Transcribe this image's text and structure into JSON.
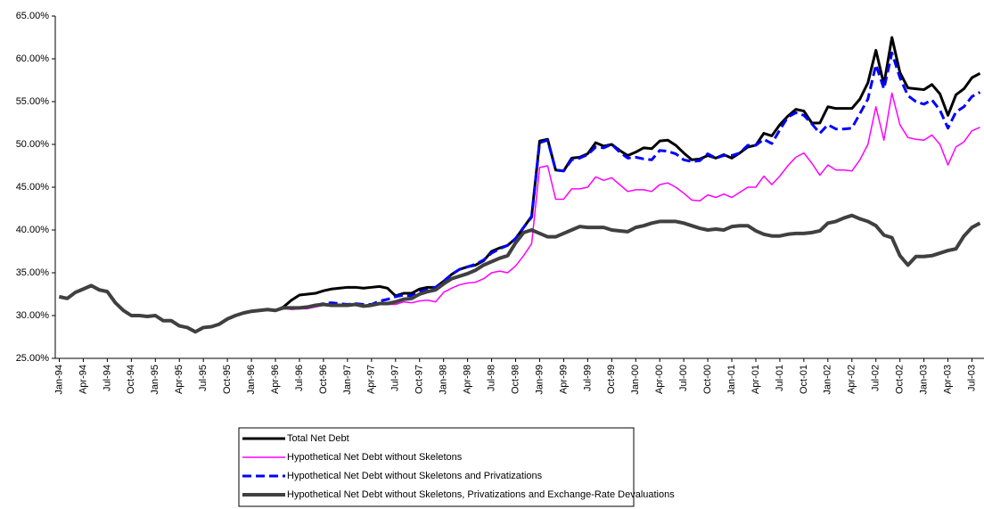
{
  "chart_data": {
    "type": "line",
    "categories": [
      "Jan-94",
      null,
      null,
      "Apr-94",
      null,
      null,
      "Jul-94",
      null,
      null,
      "Oct-94",
      null,
      null,
      "Jan-95",
      null,
      null,
      "Apr-95",
      null,
      null,
      "Jul-95",
      null,
      null,
      "Oct-95",
      null,
      null,
      "Jan-96",
      null,
      null,
      "Apr-96",
      null,
      null,
      "Jul-96",
      null,
      null,
      "Oct-96",
      null,
      null,
      "Jan-97",
      null,
      null,
      "Apr-97",
      null,
      null,
      "Jul-97",
      null,
      null,
      "Oct-97",
      null,
      null,
      "Jan-98",
      null,
      null,
      "Apr-98",
      null,
      null,
      "Jul-98",
      null,
      null,
      "Oct-98",
      null,
      null,
      "Jan-99",
      null,
      null,
      "Apr-99",
      null,
      null,
      "Jul-99",
      null,
      null,
      "Oct-99",
      null,
      null,
      "Jan-00",
      null,
      null,
      "Apr-00",
      null,
      null,
      "Jul-00",
      null,
      null,
      "Oct-00",
      null,
      null,
      "Jan-01",
      null,
      null,
      "Apr-01",
      null,
      null,
      "Jul-01",
      null,
      null,
      "Oct-01",
      null,
      null,
      "Jan-02",
      null,
      null,
      "Apr-02",
      null,
      null,
      "Jul-02",
      null,
      null,
      "Oct-02",
      null,
      null,
      "Jan-03",
      null,
      null,
      "Apr-03",
      null,
      null,
      "Jul-03",
      null
    ],
    "series": [
      {
        "name": "Total Net Debt",
        "color": "#000000",
        "style": "solid",
        "values": [
          32.2,
          32.0,
          32.7,
          33.1,
          33.5,
          33.0,
          32.8,
          31.5,
          30.6,
          30.0,
          30.0,
          29.9,
          30.0,
          29.4,
          29.4,
          28.8,
          28.6,
          28.1,
          28.6,
          28.7,
          29.0,
          29.6,
          30.0,
          30.3,
          30.5,
          30.6,
          30.7,
          30.6,
          31.0,
          31.8,
          32.4,
          32.5,
          32.6,
          32.9,
          33.1,
          33.2,
          33.3,
          33.3,
          33.2,
          33.3,
          33.4,
          33.2,
          32.3,
          32.6,
          32.6,
          33.1,
          33.3,
          33.3,
          34.0,
          34.8,
          35.4,
          35.7,
          35.9,
          36.4,
          37.5,
          37.9,
          38.2,
          39.0,
          40.3,
          41.6,
          50.4,
          50.6,
          47.0,
          46.9,
          48.4,
          48.5,
          48.9,
          50.2,
          49.8,
          50.0,
          49.3,
          48.7,
          49.1,
          49.6,
          49.5,
          50.4,
          50.5,
          49.9,
          49.0,
          48.2,
          48.3,
          48.7,
          48.4,
          48.8,
          48.4,
          49.0,
          49.7,
          49.9,
          51.3,
          51.0,
          52.3,
          53.3,
          54.1,
          53.9,
          52.5,
          52.5,
          54.4,
          54.2,
          54.2,
          54.2,
          55.3,
          57.2,
          61.0,
          57.0,
          62.5,
          58.4,
          56.6,
          56.5,
          56.4,
          57.0,
          55.9,
          53.4,
          55.8,
          56.5,
          57.8,
          58.3
        ]
      },
      {
        "name": "Hypothetical Net Debt without Skeletons",
        "color": "#ff00ff",
        "style": "solid",
        "values": [
          32.2,
          32.0,
          32.7,
          33.1,
          33.5,
          33.0,
          32.8,
          31.5,
          30.6,
          30.0,
          30.0,
          29.9,
          30.0,
          29.4,
          29.4,
          28.8,
          28.6,
          28.1,
          28.6,
          28.7,
          29.0,
          29.6,
          30.0,
          30.3,
          30.5,
          30.6,
          30.7,
          30.6,
          30.9,
          30.7,
          30.8,
          30.8,
          31.0,
          31.2,
          31.3,
          31.3,
          31.3,
          31.3,
          31.2,
          31.3,
          31.4,
          31.3,
          31.3,
          31.6,
          31.5,
          31.7,
          31.8,
          31.6,
          32.7,
          33.2,
          33.6,
          33.8,
          33.9,
          34.3,
          35.0,
          35.2,
          35.0,
          35.8,
          37.0,
          38.4,
          47.3,
          47.5,
          43.6,
          43.6,
          44.8,
          44.8,
          45.0,
          46.2,
          45.8,
          46.1,
          45.3,
          44.5,
          44.7,
          44.7,
          44.5,
          45.3,
          45.5,
          45.0,
          44.3,
          43.5,
          43.4,
          44.1,
          43.8,
          44.2,
          43.8,
          44.4,
          45.0,
          45.0,
          46.3,
          45.3,
          46.3,
          47.5,
          48.5,
          49.0,
          47.8,
          46.4,
          47.6,
          47.0,
          47.0,
          46.9,
          48.2,
          50.0,
          54.4,
          50.5,
          56.0,
          52.3,
          50.8,
          50.6,
          50.5,
          51.1,
          50.0,
          47.6,
          49.7,
          50.3,
          51.6,
          52.0
        ]
      },
      {
        "name": "Hypothetical Net Debt without Skeletons and Privatizations",
        "color": "#0000ff",
        "style": "dashed",
        "values": [
          32.2,
          32.0,
          32.7,
          33.1,
          33.5,
          33.0,
          32.8,
          31.5,
          30.6,
          30.0,
          30.0,
          29.9,
          30.0,
          29.4,
          29.4,
          28.8,
          28.6,
          28.1,
          28.6,
          28.7,
          29.0,
          29.6,
          30.0,
          30.3,
          30.5,
          30.6,
          30.7,
          30.6,
          30.9,
          30.9,
          30.9,
          31.0,
          31.2,
          31.4,
          31.5,
          31.4,
          31.3,
          31.4,
          31.3,
          31.3,
          31.7,
          31.9,
          32.2,
          32.4,
          32.3,
          32.8,
          33.0,
          33.3,
          34.0,
          34.8,
          35.4,
          35.7,
          36.0,
          36.5,
          37.3,
          37.8,
          38.2,
          39.0,
          40.3,
          41.5,
          50.2,
          50.5,
          47.0,
          46.9,
          48.2,
          48.4,
          48.8,
          49.7,
          49.6,
          50.0,
          49.1,
          48.4,
          48.5,
          48.3,
          48.2,
          49.3,
          49.2,
          48.9,
          48.2,
          48.0,
          48.1,
          48.9,
          48.4,
          48.7,
          48.7,
          49.0,
          49.9,
          49.9,
          50.6,
          50.1,
          51.7,
          53.2,
          53.7,
          53.4,
          52.4,
          51.3,
          52.3,
          51.8,
          51.8,
          51.9,
          53.6,
          55.3,
          59.3,
          56.5,
          60.7,
          57.8,
          55.7,
          55.0,
          54.7,
          55.2,
          54.0,
          51.9,
          53.8,
          54.4,
          55.6,
          56.1
        ]
      },
      {
        "name": "Hypothetical Net Debt without Skeletons, Privatizations and Exchange-Rate Devaluations",
        "color": "#404040",
        "style": "solid",
        "values": [
          32.2,
          32.0,
          32.7,
          33.1,
          33.5,
          33.0,
          32.8,
          31.5,
          30.6,
          30.0,
          30.0,
          29.9,
          30.0,
          29.4,
          29.4,
          28.8,
          28.6,
          28.1,
          28.6,
          28.7,
          29.0,
          29.6,
          30.0,
          30.3,
          30.5,
          30.6,
          30.7,
          30.6,
          30.9,
          30.9,
          30.9,
          31.0,
          31.2,
          31.3,
          31.2,
          31.2,
          31.2,
          31.3,
          31.1,
          31.2,
          31.4,
          31.4,
          31.6,
          31.9,
          32.0,
          32.5,
          32.8,
          33.0,
          33.7,
          34.3,
          34.6,
          34.9,
          35.3,
          35.9,
          36.3,
          36.7,
          37.0,
          38.5,
          39.7,
          40.0,
          39.6,
          39.2,
          39.2,
          39.6,
          40.0,
          40.4,
          40.3,
          40.3,
          40.3,
          40.0,
          39.9,
          39.8,
          40.3,
          40.5,
          40.8,
          41.0,
          41.0,
          41.0,
          40.8,
          40.5,
          40.2,
          40.0,
          40.1,
          40.0,
          40.4,
          40.5,
          40.5,
          39.9,
          39.5,
          39.3,
          39.3,
          39.5,
          39.6,
          39.6,
          39.7,
          39.9,
          40.8,
          41.0,
          41.4,
          41.7,
          41.3,
          41.0,
          40.5,
          39.4,
          39.1,
          37.0,
          35.9,
          36.9,
          36.9,
          37.0,
          37.3,
          37.6,
          37.8,
          39.3,
          40.3,
          40.8
        ]
      }
    ],
    "ylim": [
      25,
      65
    ],
    "yticks": [
      {
        "value": 25,
        "label": "25.00%"
      },
      {
        "value": 30,
        "label": "30.00%"
      },
      {
        "value": 35,
        "label": "35.00%"
      },
      {
        "value": 40,
        "label": "40.00%"
      },
      {
        "value": 45,
        "label": "45.00%"
      },
      {
        "value": 50,
        "label": "50.00%"
      },
      {
        "value": 55,
        "label": "55.00%"
      },
      {
        "value": 60,
        "label": "60.00%"
      },
      {
        "value": 65,
        "label": "65.00%"
      }
    ],
    "grid": false,
    "legend": "bottom"
  }
}
